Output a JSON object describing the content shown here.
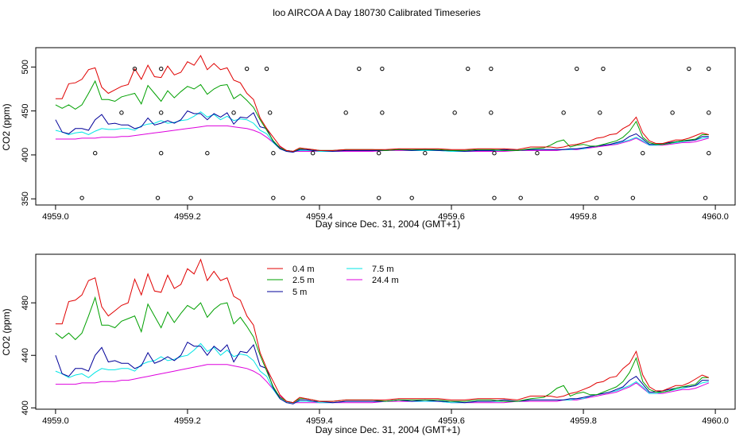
{
  "figure_title": "loo AIRCOA A  Day 180730  Calibrated Timeseries",
  "colors": {
    "0.4 m": "#e00000",
    "2.5 m": "#00a000",
    "5 m": "#000099",
    "7.5 m": "#00e5e5",
    "24.4 m": "#dd00dd",
    "markers": "#000000"
  },
  "chart_data": [
    {
      "type": "line",
      "title": "",
      "xlabel": "Day since Dec. 31, 2004 (GMT+1)",
      "ylabel": "CO2 (ppm)",
      "xlim": [
        4958.97,
        4960.03
      ],
      "ylim": [
        343,
        522
      ],
      "x_ticks": [
        {
          "value": 4959.0,
          "label": "4959.0"
        },
        {
          "value": 4959.2,
          "label": "4959.2"
        },
        {
          "value": 4959.4,
          "label": "4959.4"
        },
        {
          "value": 4959.6,
          "label": "4959.6"
        },
        {
          "value": 4959.8,
          "label": "4959.8"
        },
        {
          "value": 4960.0,
          "label": "4960.0"
        }
      ],
      "y_ticks": [
        {
          "value": 350,
          "label": "350"
        },
        {
          "value": 400,
          "label": "400"
        },
        {
          "value": 450,
          "label": "450"
        },
        {
          "value": 500,
          "label": "500"
        }
      ],
      "grid": false,
      "legend": null,
      "markers": [
        [
          4959.04,
          351
        ],
        [
          4959.06,
          402
        ],
        [
          4959.1,
          448
        ],
        [
          4959.12,
          498
        ],
        [
          4959.155,
          351
        ],
        [
          4959.16,
          402
        ],
        [
          4959.16,
          448
        ],
        [
          4959.16,
          498
        ],
        [
          4959.205,
          351
        ],
        [
          4959.23,
          402
        ],
        [
          4959.27,
          448
        ],
        [
          4959.29,
          498
        ],
        [
          4959.32,
          498
        ],
        [
          4959.325,
          448
        ],
        [
          4959.33,
          402
        ],
        [
          4959.33,
          351
        ],
        [
          4959.375,
          351
        ],
        [
          4959.39,
          402
        ],
        [
          4959.44,
          448
        ],
        [
          4959.46,
          498
        ],
        [
          4959.49,
          351
        ],
        [
          4959.49,
          402
        ],
        [
          4959.495,
          448
        ],
        [
          4959.495,
          498
        ],
        [
          4959.54,
          351
        ],
        [
          4959.56,
          402
        ],
        [
          4959.605,
          448
        ],
        [
          4959.625,
          498
        ],
        [
          4959.66,
          498
        ],
        [
          4959.66,
          448
        ],
        [
          4959.665,
          402
        ],
        [
          4959.665,
          351
        ],
        [
          4959.705,
          351
        ],
        [
          4959.73,
          402
        ],
        [
          4959.77,
          448
        ],
        [
          4959.79,
          498
        ],
        [
          4959.82,
          351
        ],
        [
          4959.825,
          402
        ],
        [
          4959.825,
          448
        ],
        [
          4959.83,
          498
        ],
        [
          4959.875,
          351
        ],
        [
          4959.89,
          402
        ],
        [
          4959.935,
          448
        ],
        [
          4959.96,
          498
        ],
        [
          4959.985,
          351
        ],
        [
          4959.99,
          402
        ],
        [
          4959.99,
          448
        ],
        [
          4959.99,
          498
        ]
      ]
    },
    {
      "type": "line",
      "title": "",
      "xlabel": "Day since Dec. 31, 2004 (GMT+1)",
      "ylabel": "CO2 (ppm)",
      "xlim": [
        4958.97,
        4960.03
      ],
      "ylim": [
        399,
        517
      ],
      "x_ticks": [
        {
          "value": 4959.0,
          "label": "4959.0"
        },
        {
          "value": 4959.2,
          "label": "4959.2"
        },
        {
          "value": 4959.4,
          "label": "4959.4"
        },
        {
          "value": 4959.6,
          "label": "4959.6"
        },
        {
          "value": 4959.8,
          "label": "4959.8"
        },
        {
          "value": 4960.0,
          "label": "4960.0"
        }
      ],
      "y_ticks": [
        {
          "value": 400,
          "label": "400"
        },
        {
          "value": 440,
          "label": "440"
        },
        {
          "value": 480,
          "label": "480"
        }
      ],
      "grid": false,
      "legend": {
        "placement": "top-left inside",
        "entries": [
          "0.4 m",
          "2.5 m",
          "5 m",
          "7.5 m",
          "24.4 m"
        ]
      },
      "markers": []
    }
  ],
  "series_shared": {
    "x": [
      4959.0,
      4959.01,
      4959.02,
      4959.03,
      4959.04,
      4959.05,
      4959.06,
      4959.07,
      4959.08,
      4959.09,
      4959.1,
      4959.11,
      4959.12,
      4959.13,
      4959.14,
      4959.15,
      4959.16,
      4959.17,
      4959.18,
      4959.19,
      4959.2,
      4959.21,
      4959.22,
      4959.23,
      4959.24,
      4959.25,
      4959.26,
      4959.27,
      4959.28,
      4959.29,
      4959.3,
      4959.31,
      4959.32,
      4959.33,
      4959.34,
      4959.35,
      4959.36,
      4959.37,
      4959.38,
      4959.39,
      4959.4,
      4959.42,
      4959.44,
      4959.46,
      4959.48,
      4959.5,
      4959.52,
      4959.54,
      4959.56,
      4959.58,
      4959.6,
      4959.62,
      4959.64,
      4959.66,
      4959.68,
      4959.7,
      4959.72,
      4959.74,
      4959.75,
      4959.76,
      4959.77,
      4959.78,
      4959.79,
      4959.8,
      4959.81,
      4959.82,
      4959.83,
      4959.84,
      4959.85,
      4959.86,
      4959.87,
      4959.88,
      4959.89,
      4959.9,
      4959.91,
      4959.92,
      4959.93,
      4959.94,
      4959.95,
      4959.96,
      4959.97,
      4959.98,
      4959.99
    ],
    "series": [
      {
        "name": "0.4 m",
        "values": [
          464,
          464,
          481,
          482,
          486,
          497,
          499,
          477,
          470,
          474,
          478,
          480,
          498,
          486,
          502,
          489,
          488,
          501,
          491,
          494,
          506,
          502,
          513,
          497,
          504,
          497,
          499,
          485,
          482,
          470,
          463,
          442,
          430,
          420,
          410,
          405,
          404,
          408,
          407,
          406,
          405,
          405,
          406,
          406,
          406,
          406,
          407,
          407,
          407,
          407,
          406,
          406,
          407,
          407,
          407,
          406,
          409,
          409,
          409,
          408,
          409,
          411,
          412,
          414,
          416,
          419,
          420,
          423,
          424,
          430,
          434,
          443,
          425,
          416,
          413,
          413,
          415,
          417,
          417,
          419,
          422,
          425,
          423
        ]
      },
      {
        "name": "2.5 m",
        "values": [
          457,
          453,
          457,
          452,
          457,
          470,
          484,
          463,
          463,
          461,
          466,
          468,
          470,
          458,
          479,
          470,
          461,
          473,
          465,
          472,
          478,
          475,
          480,
          469,
          475,
          479,
          480,
          464,
          469,
          462,
          454,
          440,
          428,
          416,
          408,
          405,
          404,
          407,
          407,
          406,
          405,
          405,
          406,
          406,
          406,
          405,
          406,
          406,
          406,
          406,
          405,
          405,
          406,
          406,
          405,
          405,
          407,
          408,
          411,
          415,
          417,
          409,
          411,
          412,
          410,
          410,
          412,
          414,
          416,
          420,
          427,
          438,
          420,
          414,
          412,
          412,
          413,
          415,
          416,
          417,
          418,
          423,
          423
        ]
      },
      {
        "name": "5 m",
        "values": [
          440,
          426,
          424,
          430,
          430,
          428,
          440,
          446,
          435,
          436,
          434,
          434,
          430,
          432,
          442,
          434,
          436,
          439,
          436,
          440,
          450,
          447,
          447,
          440,
          447,
          443,
          448,
          435,
          443,
          442,
          448,
          432,
          430,
          415,
          407,
          404,
          403,
          406,
          406,
          405,
          405,
          404,
          405,
          405,
          405,
          405,
          406,
          405,
          406,
          405,
          405,
          404,
          405,
          405,
          406,
          405,
          406,
          406,
          406,
          406,
          406,
          407,
          407,
          408,
          409,
          410,
          411,
          412,
          414,
          416,
          421,
          424,
          418,
          412,
          412,
          413,
          414,
          415,
          416,
          416,
          417,
          421,
          421
        ]
      },
      {
        "name": "7.5 m",
        "values": [
          428,
          426,
          423,
          425,
          426,
          423,
          427,
          430,
          429,
          429,
          430,
          430,
          428,
          433,
          435,
          436,
          439,
          436,
          437,
          439,
          440,
          444,
          449,
          443,
          446,
          440,
          444,
          439,
          441,
          440,
          436,
          428,
          424,
          414,
          407,
          404,
          404,
          405,
          405,
          405,
          404,
          404,
          405,
          405,
          405,
          405,
          406,
          405,
          405,
          405,
          404,
          404,
          405,
          405,
          405,
          405,
          406,
          406,
          406,
          406,
          406,
          406,
          407,
          407,
          409,
          410,
          411,
          412,
          413,
          415,
          417,
          420,
          416,
          411,
          411,
          412,
          413,
          414,
          415,
          416,
          417,
          419,
          420
        ]
      },
      {
        "name": "24.4 m",
        "values": [
          418,
          418,
          418,
          418,
          419,
          419,
          419,
          420,
          420,
          420,
          421,
          421,
          422,
          423,
          424,
          425,
          426,
          427,
          428,
          429,
          430,
          431,
          432,
          433,
          433,
          433,
          433,
          432,
          431,
          430,
          428,
          425,
          420,
          414,
          409,
          405,
          404,
          404,
          404,
          404,
          404,
          404,
          404,
          404,
          404,
          405,
          405,
          405,
          405,
          405,
          404,
          404,
          404,
          404,
          404,
          405,
          405,
          405,
          405,
          405,
          406,
          406,
          406,
          407,
          408,
          409,
          410,
          411,
          412,
          414,
          416,
          419,
          415,
          411,
          411,
          411,
          412,
          413,
          414,
          414,
          415,
          417,
          419
        ]
      }
    ]
  }
}
